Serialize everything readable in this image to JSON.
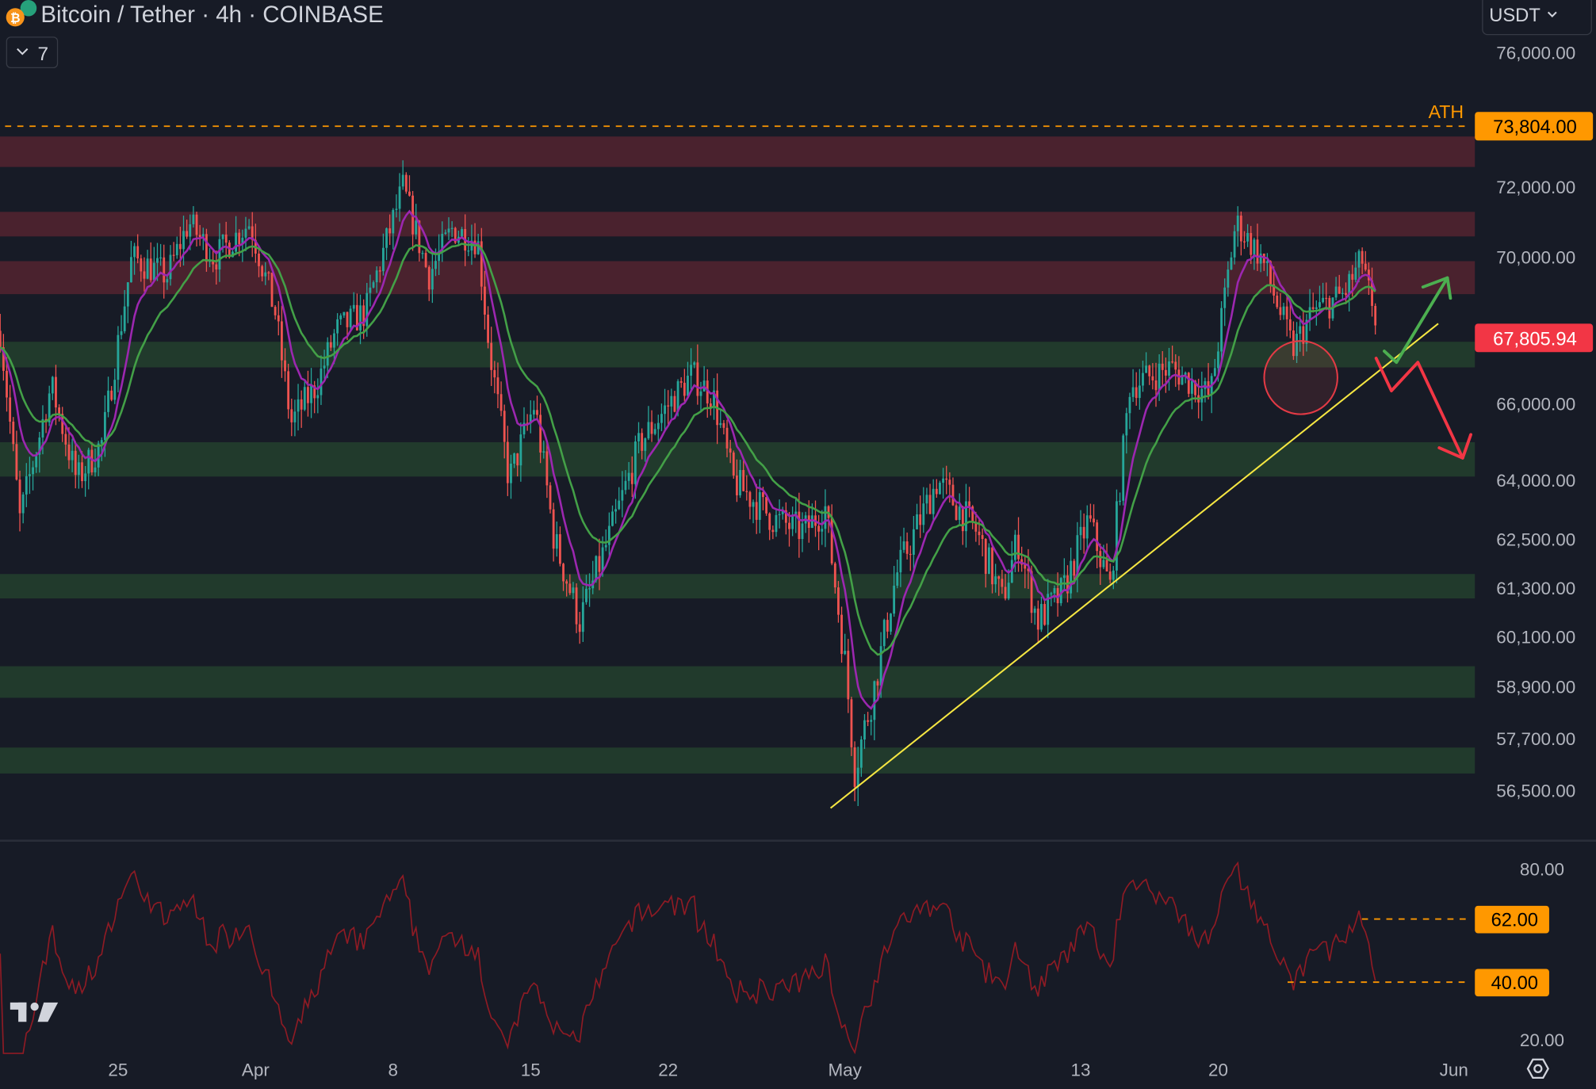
{
  "header": {
    "title": "Bitcoin / Tether · 4h · COINBASE",
    "indicators_toggle": "7",
    "currency": "USDT"
  },
  "colors": {
    "bg": "#171b26",
    "up": "#26a69a",
    "down": "#ef5350",
    "ath": "#ff9800",
    "trend": "#f5e642",
    "rsi": "#8e1b24",
    "ema_fast": "#9c27b0",
    "ema_slow": "#43a047",
    "res_zone": "#4a222e",
    "sup_zone": "#213a2c"
  },
  "chart_data": {
    "type": "candlestick",
    "title": "Bitcoin / Tether · 4h · COINBASE",
    "price_axis": [
      "76,000.00",
      "73,804.00",
      "72,000.00",
      "70,000.00",
      "66,000.00",
      "64,000.00",
      "62,500.00",
      "61,300.00",
      "60,100.00",
      "58,900.00",
      "57,700.00",
      "56,500.00"
    ],
    "price_tick_values": [
      76000,
      73804,
      72000,
      70000,
      66000,
      64000,
      62500,
      61300,
      60100,
      58900,
      57700,
      56500
    ],
    "time_axis": [
      "25",
      "Apr",
      "8",
      "15",
      "22",
      "May",
      "13",
      "20",
      "Jun"
    ],
    "time_tick_days": [
      0,
      7,
      14,
      21,
      28,
      37,
      49,
      56,
      68
    ],
    "price_path_days_since_mar25": [
      [
        -6,
        68000
      ],
      [
        -5,
        63000
      ],
      [
        -3.4,
        66500
      ],
      [
        -2.1,
        64000
      ],
      [
        -0.8,
        65000
      ],
      [
        0.7,
        70000
      ],
      [
        2.5,
        69500
      ],
      [
        3.6,
        71000
      ],
      [
        4.9,
        70000
      ],
      [
        6.7,
        71000
      ],
      [
        8,
        68500
      ],
      [
        8.8,
        65500
      ],
      [
        10.1,
        66500
      ],
      [
        11.1,
        68000
      ],
      [
        12.6,
        68500
      ],
      [
        14.5,
        72000
      ],
      [
        15.8,
        69500
      ],
      [
        17,
        70800
      ],
      [
        18.3,
        70500
      ],
      [
        18.9,
        67500
      ],
      [
        19.9,
        64000
      ],
      [
        21.2,
        66000
      ],
      [
        22.2,
        62500
      ],
      [
        23.5,
        60500
      ],
      [
        25.1,
        62700
      ],
      [
        26.6,
        65000
      ],
      [
        29.2,
        66800
      ],
      [
        30.3,
        66200
      ],
      [
        31.3,
        64000
      ],
      [
        33.4,
        63000
      ],
      [
        34.9,
        62700
      ],
      [
        36,
        63300
      ],
      [
        37,
        59500
      ],
      [
        37.5,
        57000
      ],
      [
        38.5,
        58900
      ],
      [
        39.6,
        61600
      ],
      [
        41.7,
        64000
      ],
      [
        43.7,
        62700
      ],
      [
        45,
        61000
      ],
      [
        45.8,
        62500
      ],
      [
        46.8,
        60500
      ],
      [
        48.1,
        61200
      ],
      [
        49.4,
        63000
      ],
      [
        50.5,
        61300
      ],
      [
        51.5,
        66500
      ],
      [
        53.6,
        67000
      ],
      [
        55.6,
        66200
      ],
      [
        56.9,
        71000
      ],
      [
        58.2,
        70000
      ],
      [
        59.8,
        67500
      ],
      [
        60.8,
        68500
      ],
      [
        62.4,
        69000
      ],
      [
        63.4,
        70000
      ],
      [
        64,
        67805.94
      ]
    ],
    "last_price": "67,805.94",
    "ath_label": "ATH",
    "ath_price": "73,804.00",
    "resistance_zones": [
      [
        72600,
        73500
      ],
      [
        70600,
        71300
      ],
      [
        69000,
        69900
      ]
    ],
    "support_zones": [
      [
        67000,
        67700
      ],
      [
        64100,
        65000
      ],
      [
        61050,
        61650
      ],
      [
        58650,
        59400
      ],
      [
        56900,
        57500
      ]
    ],
    "rsi": {
      "axis": [
        "80.00",
        "20.00"
      ],
      "range": [
        20,
        80
      ],
      "levels": [
        "62.00",
        "40.00"
      ],
      "level_values": [
        62,
        40
      ]
    }
  }
}
